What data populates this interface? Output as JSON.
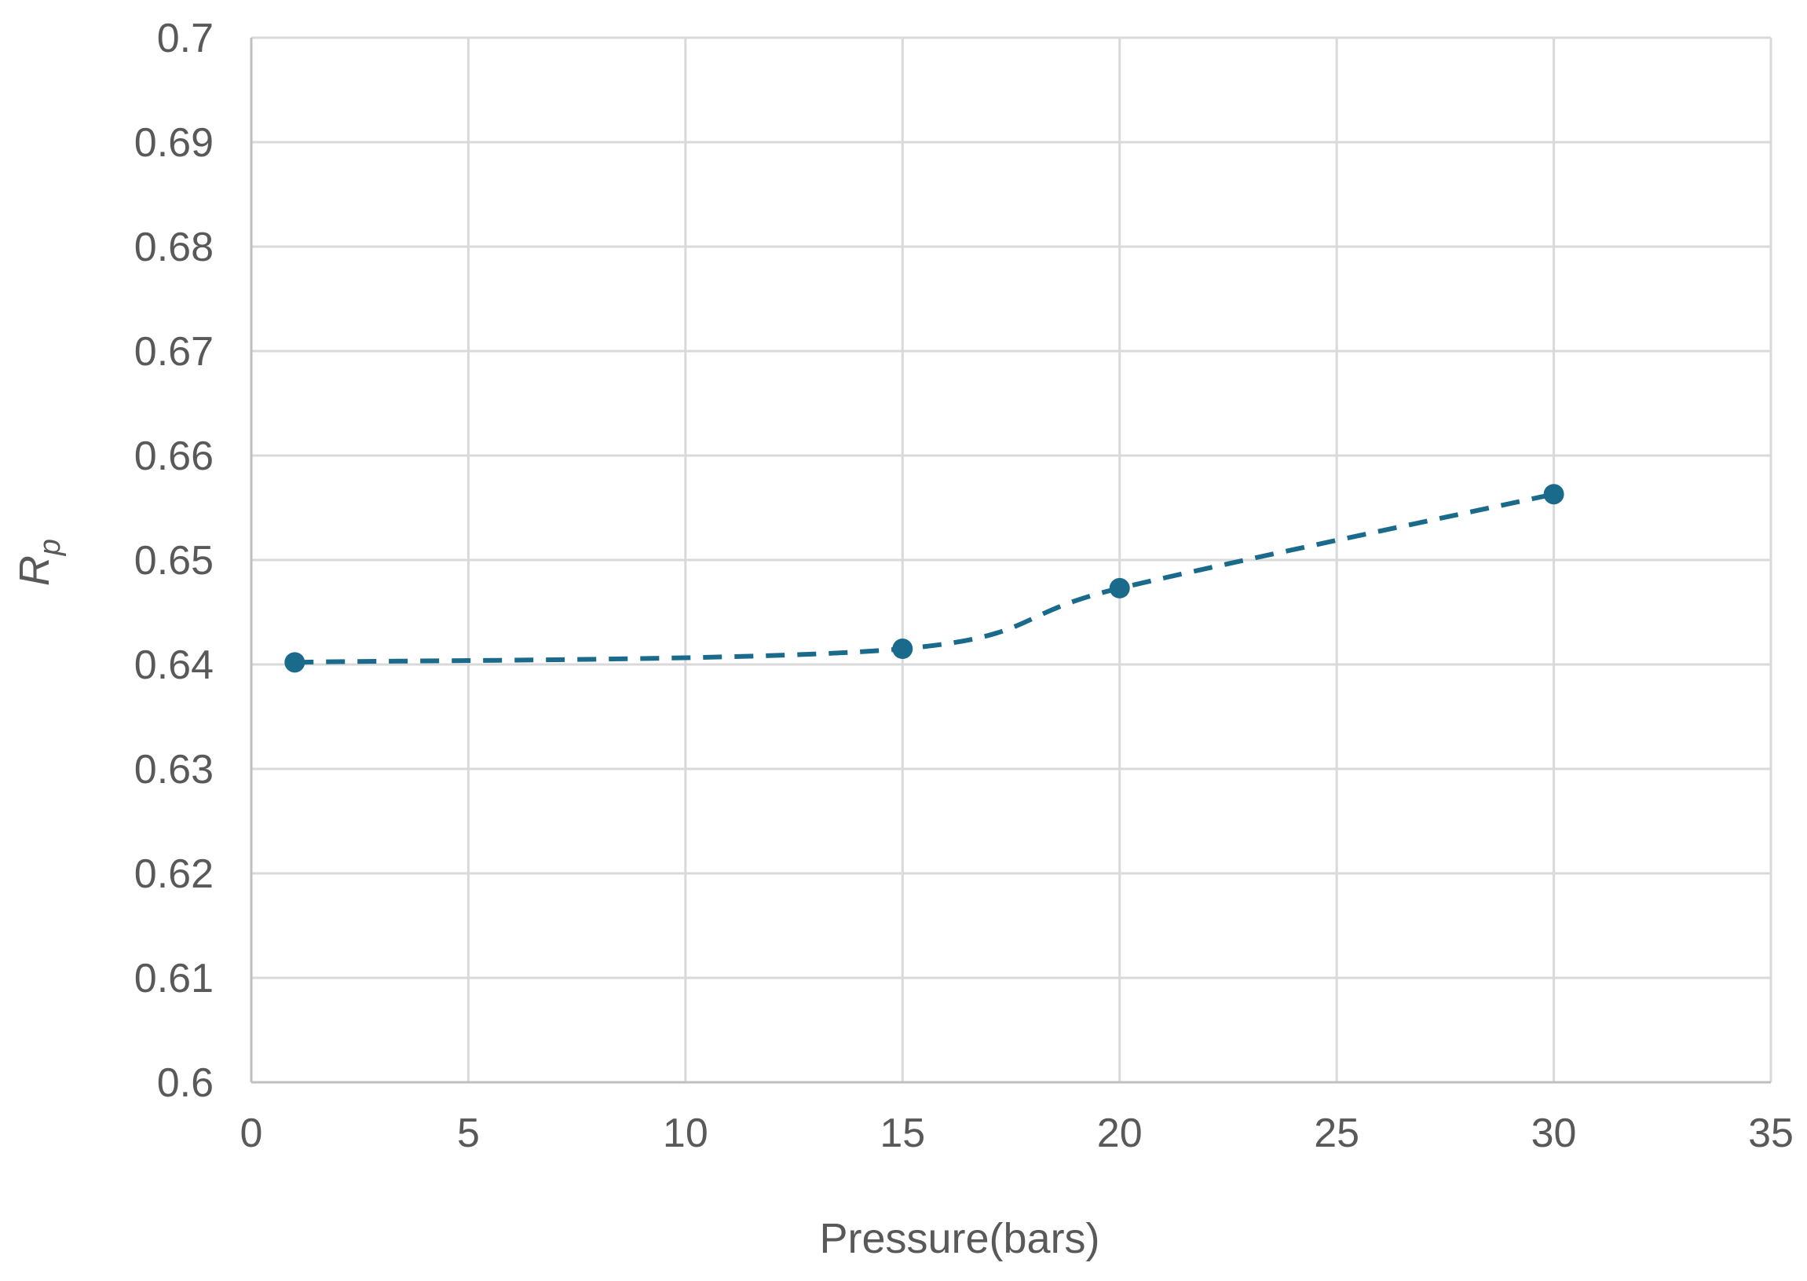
{
  "chart_data": {
    "type": "line",
    "title": "",
    "xlabel": "Pressure(bars)",
    "ylabel": "Rp",
    "ylabel_main": "R",
    "ylabel_sub": "p",
    "xlim": [
      0,
      35
    ],
    "ylim": [
      0.6,
      0.7
    ],
    "x_ticks": [
      "0",
      "5",
      "10",
      "15",
      "20",
      "25",
      "30",
      "35"
    ],
    "y_ticks": [
      "0.6",
      "0.61",
      "0.62",
      "0.63",
      "0.64",
      "0.65",
      "0.66",
      "0.67",
      "0.68",
      "0.69",
      "0.7"
    ],
    "grid": true,
    "legend": "none",
    "series": [
      {
        "x": [
          1,
          15,
          20,
          30
        ],
        "y": [
          0.6402,
          0.6415,
          0.6473,
          0.6563
        ],
        "color": "#1a6a8c",
        "line_style": "dashed",
        "smooth": true,
        "marker": "circle"
      }
    ]
  }
}
